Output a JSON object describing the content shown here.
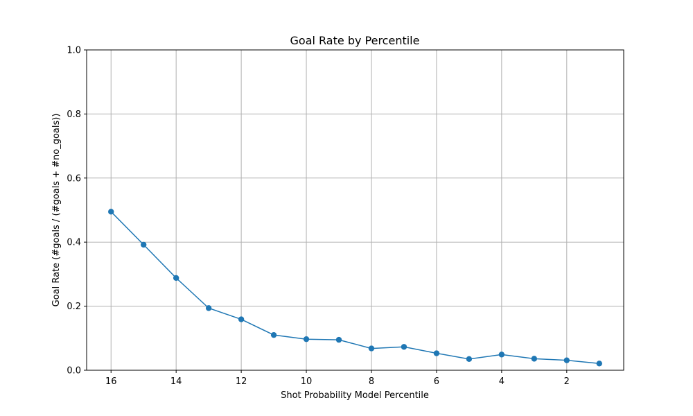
{
  "chart_data": {
    "type": "line",
    "title": "Goal Rate by Percentile",
    "xlabel": "Shot Probability Model Percentile",
    "ylabel": "Goal Rate (#goals / (#goals + #no_goals))",
    "x_inverted": true,
    "xlim": [
      16.75,
      0.25
    ],
    "ylim": [
      0,
      1.0
    ],
    "x_ticks": [
      16,
      14,
      12,
      10,
      8,
      6,
      4,
      2
    ],
    "y_ticks": [
      0.0,
      0.2,
      0.4,
      0.6,
      0.8,
      1.0
    ],
    "y_tick_labels": [
      "0.0",
      "0.2",
      "0.4",
      "0.6",
      "0.8",
      "1.0"
    ],
    "grid": true,
    "series": [
      {
        "color": "#1f77b4",
        "marker": "circle",
        "x": [
          16,
          15,
          14,
          13,
          12,
          11,
          10,
          9,
          8,
          7,
          6,
          5,
          4,
          3,
          2,
          1
        ],
        "values": [
          0.495,
          0.392,
          0.288,
          0.194,
          0.159,
          0.11,
          0.097,
          0.095,
          0.068,
          0.073,
          0.053,
          0.035,
          0.049,
          0.036,
          0.031,
          0.021
        ]
      }
    ]
  }
}
